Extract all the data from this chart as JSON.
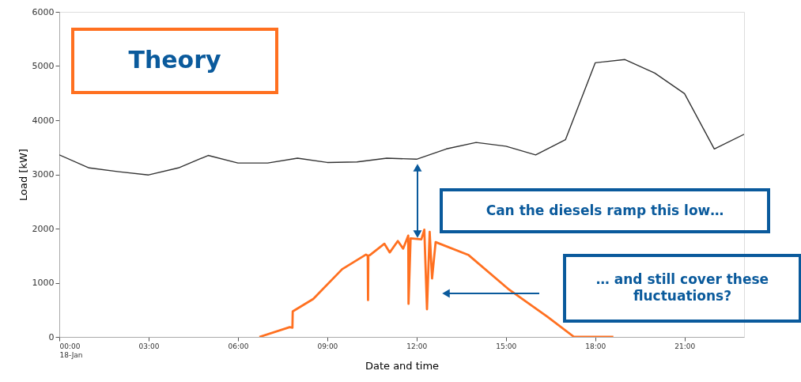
{
  "chart_data": {
    "type": "line",
    "xlabel": "Date and time",
    "ylabel": "Load [kW]",
    "xlim": [
      0,
      23
    ],
    "ylim": [
      0,
      6000
    ],
    "xticks": [
      {
        "value": 0,
        "label": "00:00\n18-Jan"
      },
      {
        "value": 3,
        "label": "03:00"
      },
      {
        "value": 6,
        "label": "06:00"
      },
      {
        "value": 9,
        "label": "09:00"
      },
      {
        "value": 12,
        "label": "12:00"
      },
      {
        "value": 15,
        "label": "15:00"
      },
      {
        "value": 18,
        "label": "18:00"
      },
      {
        "value": 21,
        "label": "21:00"
      }
    ],
    "yticks": [
      0,
      1000,
      2000,
      3000,
      4000,
      5000,
      6000
    ],
    "series": [
      {
        "color": "#333333",
        "x": [
          0,
          1,
          2,
          3,
          4,
          5,
          6,
          7,
          8,
          9,
          10,
          11,
          12,
          13,
          14,
          15,
          16,
          17,
          18,
          19,
          20,
          21,
          22,
          23
        ],
        "values": [
          3360,
          3120,
          3050,
          2990,
          3120,
          3350,
          3210,
          3210,
          3300,
          3220,
          3230,
          3300,
          3280,
          3470,
          3590,
          3520,
          3360,
          3640,
          5060,
          5120,
          4870,
          4490,
          3470,
          3740
        ]
      },
      {
        "color": "#ff7020",
        "x": [
          6.72,
          7.74,
          7.83,
          7.84,
          8.53,
          9.5,
          10.3,
          10.36,
          10.37,
          10.38,
          10.43,
          10.92,
          11.1,
          11.37,
          11.55,
          11.72,
          11.73,
          11.8,
          12.16,
          12.26,
          12.35,
          12.44,
          12.52,
          12.64,
          13.75,
          15.07,
          16.4,
          17.29,
          18.61
        ],
        "values": [
          0,
          180,
          170,
          470,
          700,
          1250,
          1520,
          1500,
          680,
          1500,
          1510,
          1720,
          1560,
          1770,
          1630,
          1870,
          610,
          1820,
          1800,
          1980,
          510,
          1940,
          1080,
          1750,
          1510,
          890,
          370,
          0,
          0
        ]
      }
    ],
    "annotations": [
      "Theory",
      "Can the diesels ramp this low…",
      "… and still cover these\nfluctuations?"
    ]
  }
}
